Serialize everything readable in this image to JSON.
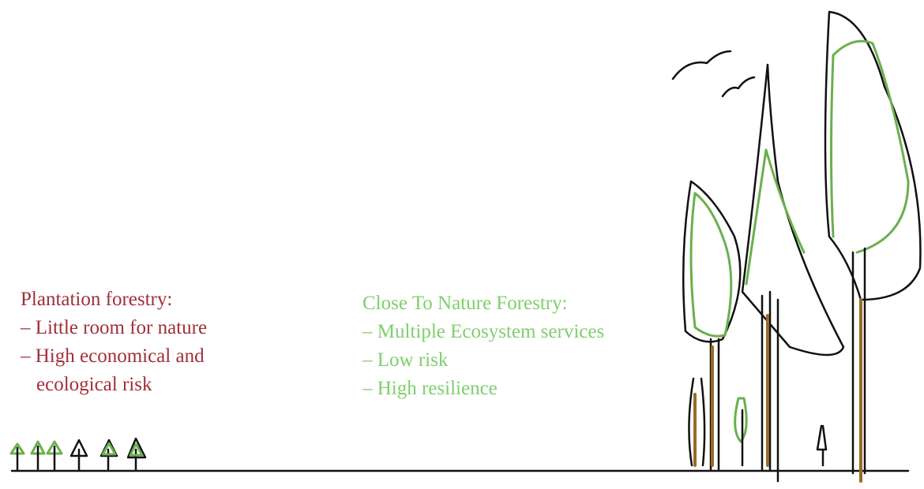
{
  "plantation": {
    "title": "Plantation forestry:",
    "lines": [
      "– Little room for nature",
      "– High economical and",
      "ecological risk"
    ]
  },
  "close_to_nature": {
    "title": "Close To Nature Forestry:",
    "lines": [
      "– Multiple Ecosystem services",
      "– Low risk",
      "– High resilience"
    ]
  }
}
